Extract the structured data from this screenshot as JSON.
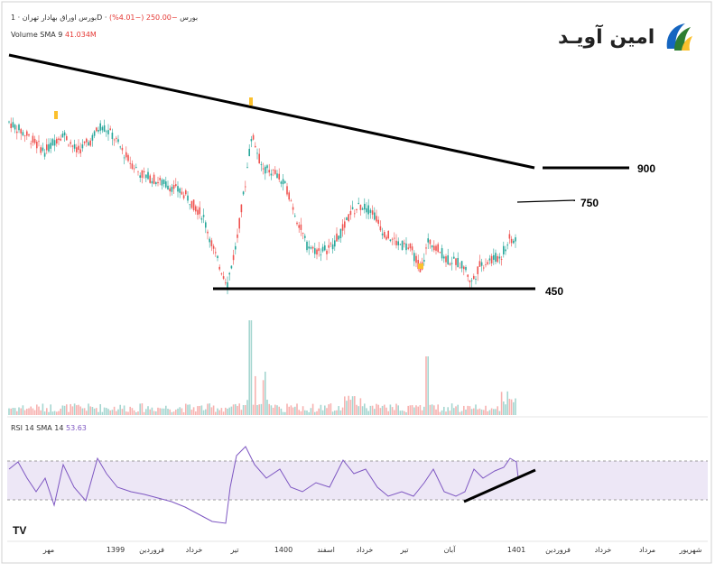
{
  "header": {
    "symbol_line": "بورس اوراق بهادار تهران · 1D · بورس",
    "change": "−250.00 (−4.01%)",
    "volume_label": "Volume SMA 9",
    "volume_value": "41.034M",
    "rsi_label": "RSI 14 SMA 14",
    "rsi_value": "53.63"
  },
  "logo": {
    "text": "امین آویـد"
  },
  "colors": {
    "up": "#26a69a",
    "down": "#ef5350",
    "rsi_line": "#7e57c2",
    "rsi_band": "#ede7f6",
    "annotation": "#000000"
  },
  "chart_data": [
    {
      "type": "candlestick",
      "title": "",
      "annotations": [
        {
          "type": "trendline",
          "label": "descending resistance"
        },
        {
          "type": "horizontal",
          "label": "900",
          "value": 900
        },
        {
          "type": "horizontal",
          "label": "750",
          "value": 750
        },
        {
          "type": "horizontal",
          "label": "450",
          "value": 450
        }
      ],
      "close_approx": [
        {
          "period": "مهر",
          "value": 1000
        },
        {
          "period": "1399",
          "value": 980
        },
        {
          "period": "فروردین",
          "value": 800
        },
        {
          "period": "خرداد",
          "value": 520
        },
        {
          "period": "تیر",
          "value": 960
        },
        {
          "period": "1400",
          "value": 700
        },
        {
          "period": "اسفند",
          "value": 560
        },
        {
          "period": "خرداد",
          "value": 680
        },
        {
          "period": "تیر",
          "value": 520
        },
        {
          "period": "آبان",
          "value": 470
        },
        {
          "period": "1401",
          "value": 610
        }
      ]
    },
    {
      "type": "bar",
      "title": "Volume SMA 9",
      "note": "volume bars with spikes near تیر 1399 and آبان 1400"
    },
    {
      "type": "line",
      "title": "RSI 14 SMA 14",
      "ylim": [
        0,
        100
      ],
      "band": [
        30,
        70
      ],
      "last_value": 53.63,
      "annotations": [
        {
          "type": "trendline",
          "label": "rising support"
        }
      ]
    }
  ],
  "x_axis": {
    "ticks": [
      "مهر",
      "1399",
      "فروردین",
      "خرداد",
      "تیر",
      "1400",
      "اسفند",
      "خرداد",
      "تیر",
      "آبان",
      "1401",
      "فروردین",
      "خرداد",
      "مرداد",
      "شهریور"
    ]
  },
  "levels": {
    "l900": "900",
    "l750": "750",
    "l450": "450"
  },
  "tv_logo": "TV"
}
